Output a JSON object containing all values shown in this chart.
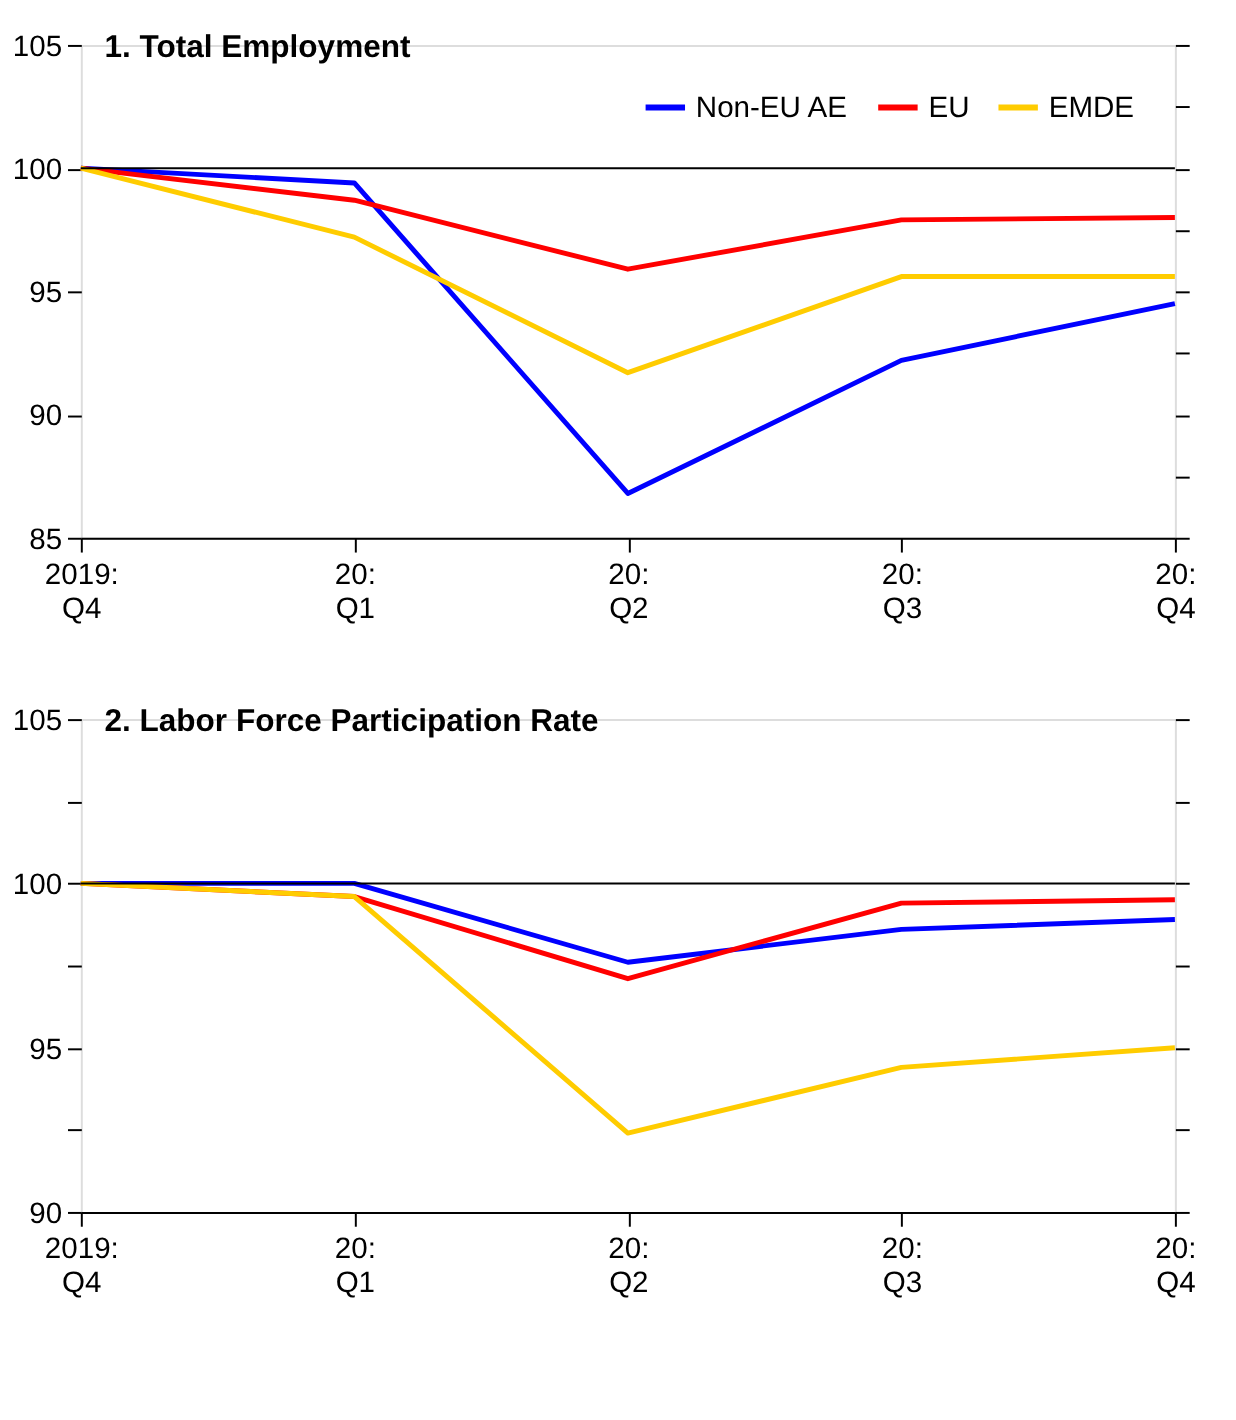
{
  "chart_data": [
    {
      "type": "line",
      "title": "1. Total Employment",
      "categories": [
        "2019:\nQ4",
        "20:\nQ1",
        "20:\nQ2",
        "20:\nQ3",
        "20:\nQ4"
      ],
      "series": [
        {
          "name": "Non-EU AE",
          "color": "#0000ff",
          "values": [
            100,
            99.4,
            86.8,
            92.2,
            94.5
          ]
        },
        {
          "name": "EU",
          "color": "#ff0000",
          "values": [
            100,
            98.7,
            95.9,
            97.9,
            98.0
          ]
        },
        {
          "name": "EMDE",
          "color": "#ffcc00",
          "values": [
            100,
            97.2,
            91.7,
            95.6,
            95.6
          ]
        }
      ],
      "ylim": [
        85,
        105
      ],
      "yticks": [
        85,
        {
          "value": 87.5,
          "label": null
        },
        90,
        {
          "value": 92.5,
          "label": null
        },
        95,
        {
          "value": 97.5,
          "label": null
        },
        100,
        {
          "value": 102.5,
          "label": null
        },
        105
      ],
      "ref_lines": [
        {
          "axis": "y",
          "value": 100,
          "color": "#000000"
        }
      ],
      "legend": "top right",
      "grid": false,
      "marker": "none",
      "line_style": "solid"
    },
    {
      "type": "line",
      "title": "2. Labor Force Participation Rate",
      "categories": [
        "2019:\nQ4",
        "20:\nQ1",
        "20:\nQ2",
        "20:\nQ3",
        "20:\nQ4"
      ],
      "series": [
        {
          "name": "Non-EU AE",
          "color": "#0000ff",
          "values": [
            100,
            100,
            97.6,
            98.6,
            98.9
          ]
        },
        {
          "name": "EU",
          "color": "#ff0000",
          "values": [
            100,
            99.6,
            97.1,
            99.4,
            99.5
          ]
        },
        {
          "name": "EMDE",
          "color": "#ffcc00",
          "values": [
            100,
            99.6,
            92.4,
            94.4,
            95.0
          ]
        }
      ],
      "ylim": [
        90,
        105
      ],
      "yticks": [
        90,
        {
          "value": 92.5,
          "label": null
        },
        95,
        {
          "value": 97.5,
          "label": null
        },
        100,
        {
          "value": 102.5,
          "label": null
        },
        105
      ],
      "ref_lines": [
        {
          "axis": "y",
          "value": 100,
          "color": "#000000"
        }
      ],
      "legend": "top right",
      "grid": false,
      "marker": "none",
      "line_style": "solid"
    }
  ]
}
